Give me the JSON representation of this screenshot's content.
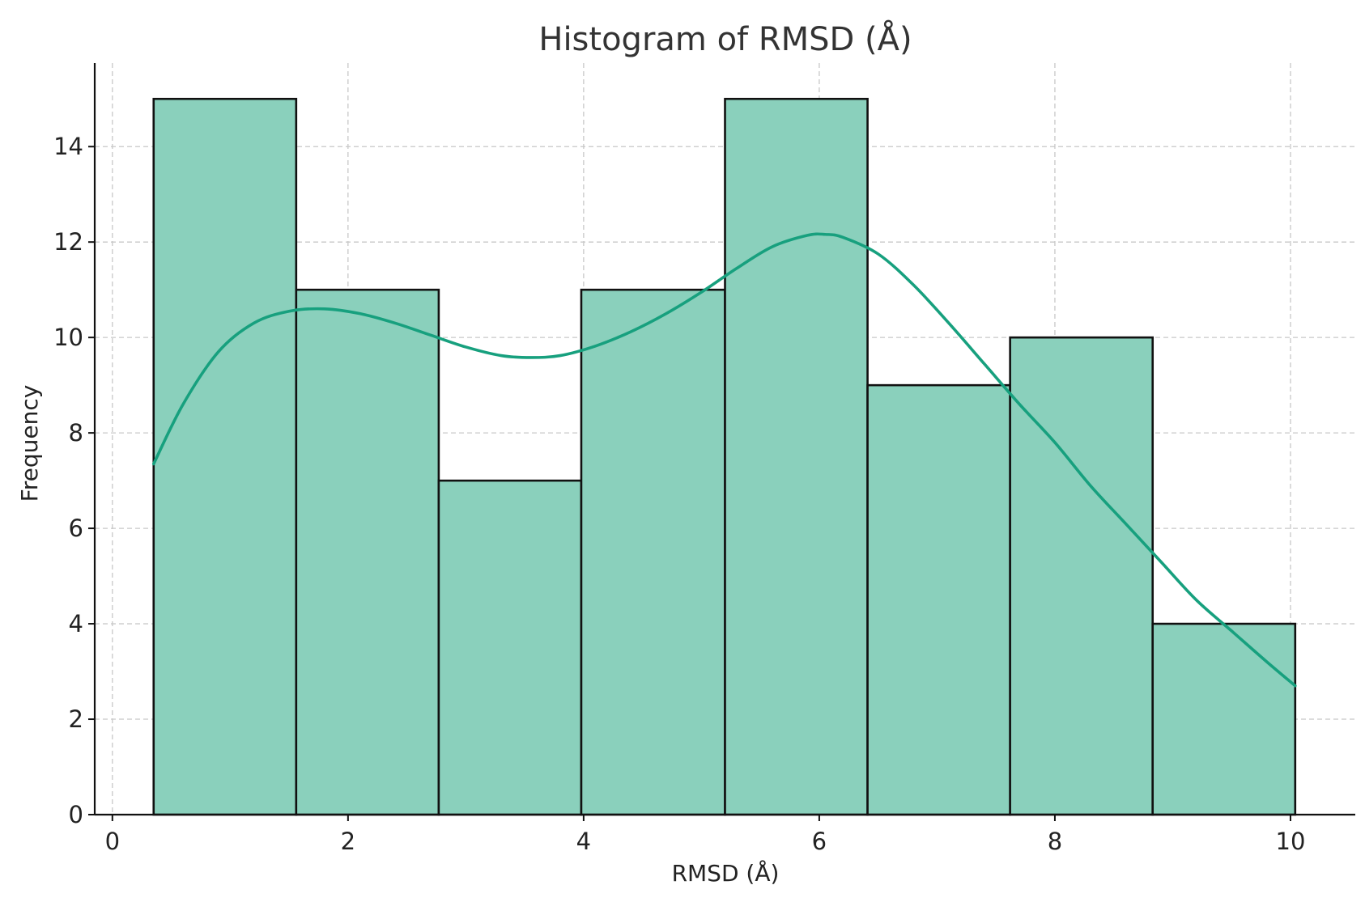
{
  "chart_data": {
    "type": "bar",
    "title": "Histogram of RMSD (Å)",
    "xlabel": "RMSD (Å)",
    "ylabel": "Frequency",
    "xlim": [
      -0.15,
      10.55
    ],
    "ylim": [
      0,
      15.75
    ],
    "grid": true,
    "x_ticks": [
      0,
      2,
      4,
      6,
      8,
      10
    ],
    "y_ticks": [
      0,
      2,
      4,
      6,
      8,
      10,
      12,
      14
    ],
    "bins": [
      {
        "start": 0.35,
        "end": 1.56,
        "count": 15
      },
      {
        "start": 1.56,
        "end": 2.77,
        "count": 11
      },
      {
        "start": 2.77,
        "end": 3.98,
        "count": 7
      },
      {
        "start": 3.98,
        "end": 5.2,
        "count": 11
      },
      {
        "start": 5.2,
        "end": 6.41,
        "count": 15
      },
      {
        "start": 6.41,
        "end": 7.62,
        "count": 9
      },
      {
        "start": 7.62,
        "end": 8.83,
        "count": 10
      },
      {
        "start": 8.83,
        "end": 10.04,
        "count": 4
      }
    ],
    "kde": {
      "x": [
        0.35,
        0.6,
        0.9,
        1.2,
        1.5,
        1.8,
        2.1,
        2.4,
        2.7,
        3.0,
        3.3,
        3.55,
        3.8,
        4.1,
        4.4,
        4.7,
        5.0,
        5.3,
        5.6,
        5.9,
        6.05,
        6.2,
        6.5,
        6.8,
        7.1,
        7.4,
        7.7,
        8.0,
        8.3,
        8.6,
        8.9,
        9.2,
        9.5,
        9.8,
        10.04
      ],
      "y": [
        7.35,
        8.6,
        9.7,
        10.3,
        10.55,
        10.6,
        10.5,
        10.3,
        10.05,
        9.8,
        9.62,
        9.58,
        9.62,
        9.82,
        10.12,
        10.5,
        10.95,
        11.45,
        11.9,
        12.14,
        12.16,
        12.1,
        11.75,
        11.1,
        10.3,
        9.45,
        8.6,
        7.8,
        6.9,
        6.1,
        5.3,
        4.5,
        3.85,
        3.2,
        2.7
      ]
    },
    "colors": {
      "bar_fill": "#8ad0bc",
      "kde_line": "#17a07e"
    }
  }
}
